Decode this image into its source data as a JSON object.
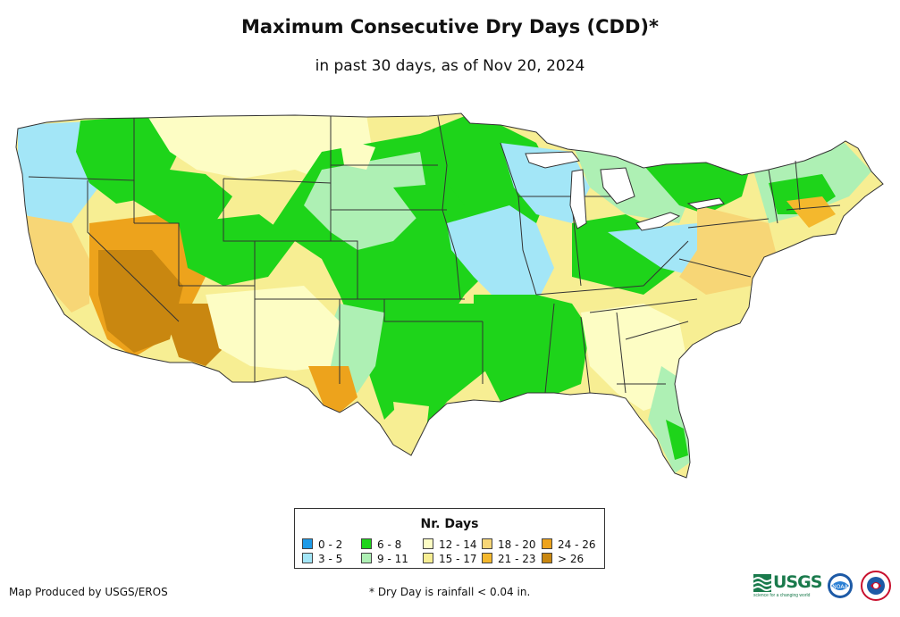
{
  "title": "Maximum Consecutive Dry Days (CDD)*",
  "subtitle": "in past 30 days, as of Nov 20, 2024",
  "legend": {
    "title": "Nr. Days",
    "items": [
      {
        "label": "0 - 2",
        "color": "#1f9be8"
      },
      {
        "label": "3 - 5",
        "color": "#a3e6f7"
      },
      {
        "label": "6 - 8",
        "color": "#1ed41a"
      },
      {
        "label": "9 - 11",
        "color": "#aef0b4"
      },
      {
        "label": "12 - 14",
        "color": "#fdfdc4"
      },
      {
        "label": "15 - 17",
        "color": "#f7ee93"
      },
      {
        "label": "18 - 20",
        "color": "#f7d676"
      },
      {
        "label": "21 - 23",
        "color": "#f4b82d"
      },
      {
        "label": "24 - 26",
        "color": "#eda31c"
      },
      {
        "label": "> 26",
        "color": "#c98710"
      }
    ]
  },
  "footer": {
    "producer": "Map Produced by USGS/EROS",
    "note": "* Dry Day is rainfall < 0.04 in."
  },
  "logos": {
    "usgs_text": "USGS",
    "usgs_tagline": "science for a changing world",
    "noaa_text": "NOAA"
  }
}
